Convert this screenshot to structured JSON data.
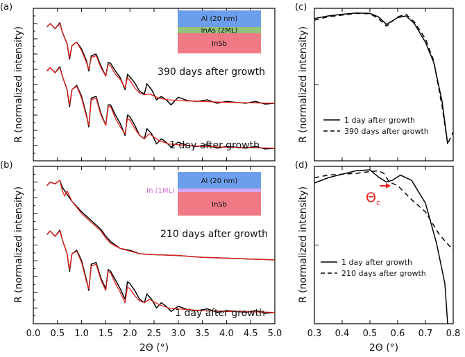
{
  "colors": {
    "measured": "#000000",
    "fit": "#e8201a",
    "al_layer": "#6d9eeb",
    "inas_layer": "#92c47c",
    "insb_layer": "#f07a84",
    "in_layer": "#d5a6f5",
    "in_label": "#d36bd3",
    "theta_c": "#e8201a"
  },
  "chart_data": [
    {
      "panel": "(a)",
      "type": "line",
      "xlabel": "",
      "ylabel": "R (normalized intensity)",
      "xlim": [
        0.0,
        5.0
      ],
      "scale": "log (arbitrary, curves offset)",
      "annotations": [
        "390 days after growth",
        "1 day after growth"
      ],
      "inset": {
        "layers": [
          "Al (20 nm)",
          "InAs (2ML)",
          "InSb"
        ]
      },
      "series": [
        {
          "name": "390 days after growth",
          "role": "measured",
          "color": "#000000",
          "x": [
            0.28,
            0.35,
            0.45,
            0.55,
            0.6,
            0.7,
            0.75,
            0.8,
            0.9,
            1.0,
            1.1,
            1.15,
            1.2,
            1.3,
            1.4,
            1.5,
            1.55,
            1.6,
            1.7,
            1.8,
            1.9,
            1.95,
            2.0,
            2.1,
            2.2,
            2.3,
            2.35,
            2.45,
            2.55,
            2.65,
            2.75,
            2.85,
            3.0,
            3.2,
            3.4,
            3.6,
            3.8,
            4.0,
            4.2,
            4.4,
            4.6,
            4.8,
            5.0
          ],
          "y": [
            8.9,
            9.1,
            8.8,
            9.15,
            8.6,
            7.9,
            7.0,
            7.8,
            8.0,
            7.6,
            6.9,
            6.3,
            7.2,
            7.3,
            6.6,
            6.0,
            6.8,
            6.75,
            6.3,
            5.9,
            5.2,
            6.1,
            5.95,
            5.6,
            5.1,
            4.95,
            5.55,
            5.2,
            4.6,
            4.8,
            4.6,
            4.3,
            4.75,
            4.55,
            4.5,
            4.6,
            4.4,
            4.5,
            4.45,
            4.4,
            4.5,
            4.35,
            4.4
          ]
        },
        {
          "name": "390 days after growth fit",
          "role": "fit",
          "color": "#e8201a",
          "x": [
            0.28,
            0.35,
            0.45,
            0.55,
            0.6,
            0.7,
            0.75,
            0.8,
            0.9,
            1.0,
            1.1,
            1.15,
            1.2,
            1.3,
            1.4,
            1.5,
            1.55,
            1.6,
            1.7,
            1.8,
            1.9,
            1.95,
            2.0,
            2.1,
            2.2,
            2.3,
            2.4,
            2.6,
            2.8,
            3.0,
            3.5,
            4.0,
            4.5,
            5.0
          ],
          "y": [
            8.9,
            9.1,
            8.8,
            9.1,
            8.6,
            7.9,
            7.1,
            7.8,
            8.0,
            7.5,
            6.8,
            6.4,
            7.1,
            7.2,
            6.5,
            6.0,
            6.7,
            6.6,
            6.1,
            5.8,
            5.3,
            5.9,
            5.75,
            5.3,
            5.0,
            4.9,
            4.95,
            4.7,
            4.6,
            4.55,
            4.5,
            4.45,
            4.42,
            4.4
          ]
        },
        {
          "name": "1 day after growth",
          "role": "measured",
          "color": "#000000",
          "x": [
            0.28,
            0.35,
            0.45,
            0.55,
            0.6,
            0.7,
            0.75,
            0.8,
            0.9,
            1.0,
            1.1,
            1.15,
            1.2,
            1.3,
            1.4,
            1.5,
            1.55,
            1.6,
            1.7,
            1.8,
            1.9,
            1.95,
            2.0,
            2.1,
            2.2,
            2.3,
            2.35,
            2.45,
            2.55,
            2.65,
            2.75,
            2.85,
            3.0,
            3.2,
            3.4,
            3.6,
            3.8,
            4.0,
            4.2,
            4.4,
            4.6,
            4.8,
            5.0
          ],
          "y": [
            6.3,
            6.5,
            6.2,
            6.55,
            6.0,
            5.2,
            4.2,
            5.2,
            5.45,
            4.8,
            3.7,
            3.0,
            4.7,
            4.8,
            3.8,
            3.1,
            4.3,
            4.3,
            3.7,
            3.2,
            2.5,
            3.7,
            3.6,
            3.1,
            2.5,
            2.3,
            2.9,
            2.6,
            2.0,
            2.3,
            2.1,
            1.8,
            2.1,
            1.9,
            1.85,
            1.95,
            1.75,
            1.85,
            1.8,
            1.75,
            1.85,
            1.7,
            1.75
          ]
        },
        {
          "name": "1 day after growth fit",
          "role": "fit",
          "color": "#e8201a",
          "x": [
            0.28,
            0.35,
            0.45,
            0.55,
            0.6,
            0.7,
            0.75,
            0.8,
            0.9,
            1.0,
            1.1,
            1.15,
            1.2,
            1.3,
            1.4,
            1.5,
            1.55,
            1.6,
            1.7,
            1.8,
            1.9,
            1.95,
            2.0,
            2.1,
            2.2,
            2.3,
            2.4,
            2.6,
            2.8,
            3.0,
            3.5,
            4.0,
            4.5,
            5.0
          ],
          "y": [
            6.3,
            6.5,
            6.2,
            6.5,
            6.0,
            5.2,
            4.3,
            5.2,
            5.4,
            4.7,
            3.6,
            3.1,
            4.6,
            4.7,
            3.7,
            3.1,
            4.2,
            4.2,
            3.5,
            3.0,
            2.6,
            3.5,
            3.4,
            2.9,
            2.5,
            2.3,
            2.6,
            2.2,
            2.0,
            1.95,
            1.85,
            1.8,
            1.78,
            1.75
          ]
        }
      ]
    },
    {
      "panel": "(b)",
      "type": "line",
      "xlabel": "2Θ (°)",
      "ylabel": "R (normalized intensity)",
      "xlim": [
        0.0,
        5.0
      ],
      "xticks": [
        "0.0",
        "0.5",
        "1.0",
        "1.5",
        "2.0",
        "2.5",
        "3.0",
        "3.5",
        "4.0",
        "4.5",
        "5.0"
      ],
      "scale": "log (arbitrary, curves offset)",
      "annotations": [
        "210 days after growth",
        "1 day after growth"
      ],
      "inset": {
        "layers": [
          "Al (20 nm)",
          "In (1ML)",
          "InSb"
        ]
      },
      "series": [
        {
          "name": "210 days after growth",
          "role": "measured",
          "color": "#000000",
          "x": [
            0.28,
            0.35,
            0.45,
            0.55,
            0.6,
            0.7,
            0.8,
            1.0,
            1.2,
            1.4,
            1.5,
            1.6,
            1.8,
            2.0,
            2.2,
            2.5,
            3.0,
            3.5,
            4.0,
            4.5,
            5.0
          ],
          "y": [
            8.9,
            9.1,
            9.0,
            9.2,
            8.8,
            8.4,
            8.0,
            7.4,
            6.9,
            6.4,
            6.0,
            5.7,
            5.3,
            5.2,
            5.0,
            4.95,
            4.9,
            4.8,
            4.75,
            4.7,
            4.65
          ]
        },
        {
          "name": "210 days after growth fit",
          "role": "fit",
          "color": "#e8201a",
          "x": [
            0.28,
            0.35,
            0.45,
            0.55,
            0.6,
            0.65,
            0.7,
            0.8,
            1.0,
            1.2,
            1.4,
            1.5,
            1.6,
            1.8,
            2.0,
            2.2,
            2.5,
            3.0,
            3.5,
            4.0,
            4.5,
            5.0
          ],
          "y": [
            8.9,
            9.1,
            9.0,
            9.2,
            8.6,
            8.3,
            8.6,
            8.0,
            7.3,
            6.8,
            6.3,
            5.9,
            5.6,
            5.3,
            5.15,
            5.0,
            4.95,
            4.9,
            4.8,
            4.75,
            4.7,
            4.65
          ]
        },
        {
          "name": "1 day after growth",
          "role": "measured",
          "color": "#000000",
          "x": [
            0.28,
            0.35,
            0.45,
            0.55,
            0.6,
            0.7,
            0.75,
            0.8,
            0.9,
            1.0,
            1.1,
            1.15,
            1.2,
            1.3,
            1.4,
            1.5,
            1.55,
            1.6,
            1.7,
            1.8,
            1.9,
            1.95,
            2.0,
            2.1,
            2.2,
            2.3,
            2.35,
            2.45,
            2.55,
            2.65,
            2.75,
            2.85,
            3.0,
            3.2,
            3.4,
            3.6,
            3.8,
            4.0,
            4.2,
            4.4,
            4.6,
            4.8,
            5.0
          ],
          "y": [
            6.1,
            6.3,
            6.0,
            6.35,
            5.8,
            5.0,
            4.0,
            5.0,
            5.2,
            4.6,
            3.5,
            2.9,
            4.4,
            4.5,
            3.6,
            3.0,
            4.1,
            4.0,
            3.5,
            3.0,
            2.4,
            3.4,
            3.3,
            2.9,
            2.4,
            2.2,
            2.7,
            2.4,
            1.9,
            2.2,
            2.0,
            1.7,
            2.0,
            1.8,
            1.75,
            1.85,
            1.65,
            1.75,
            1.7,
            1.65,
            1.75,
            1.6,
            1.65
          ]
        },
        {
          "name": "1 day after growth fit",
          "role": "fit",
          "color": "#e8201a",
          "x": [
            0.28,
            0.35,
            0.45,
            0.55,
            0.6,
            0.7,
            0.75,
            0.8,
            0.9,
            1.0,
            1.1,
            1.15,
            1.2,
            1.3,
            1.4,
            1.5,
            1.55,
            1.6,
            1.7,
            1.8,
            1.9,
            1.95,
            2.0,
            2.1,
            2.2,
            2.3,
            2.4,
            2.6,
            2.8,
            3.0,
            3.5,
            4.0,
            4.5,
            5.0
          ],
          "y": [
            6.1,
            6.3,
            6.0,
            6.3,
            5.8,
            5.0,
            4.1,
            5.0,
            5.15,
            4.5,
            3.4,
            3.0,
            4.3,
            4.4,
            3.5,
            2.9,
            4.0,
            3.9,
            3.3,
            2.8,
            2.2,
            3.1,
            3.0,
            2.6,
            2.3,
            2.2,
            2.4,
            2.1,
            1.9,
            1.85,
            1.75,
            1.7,
            1.68,
            1.65
          ]
        }
      ]
    },
    {
      "panel": "(c)",
      "type": "line",
      "xlabel": "",
      "ylabel": "R (normalized intensity)",
      "xlim": [
        0.3,
        0.8
      ],
      "legend": [
        "1 day after growth",
        "390 days after growth"
      ],
      "legend_position": "bottom-left",
      "series": [
        {
          "name": "1 day after growth",
          "style": "solid",
          "x": [
            0.3,
            0.35,
            0.4,
            0.45,
            0.5,
            0.53,
            0.56,
            0.6,
            0.63,
            0.66,
            0.7,
            0.73,
            0.76,
            0.78
          ],
          "y": [
            9.4,
            9.55,
            9.65,
            9.72,
            9.7,
            9.5,
            9.05,
            9.45,
            9.55,
            9.1,
            8.0,
            6.8,
            4.5,
            2.0
          ]
        },
        {
          "name": "390 days after growth",
          "style": "dashed",
          "x": [
            0.3,
            0.35,
            0.4,
            0.45,
            0.5,
            0.53,
            0.56,
            0.6,
            0.63,
            0.66,
            0.7,
            0.73,
            0.76,
            0.78,
            0.8
          ],
          "y": [
            9.3,
            9.5,
            9.6,
            9.7,
            9.68,
            9.4,
            8.95,
            9.5,
            9.65,
            9.2,
            8.2,
            6.9,
            4.2,
            2.0,
            2.7
          ]
        }
      ]
    },
    {
      "panel": "(d)",
      "type": "line",
      "xlabel": "2Θ (°)",
      "ylabel": "R (normalized intensity)",
      "xlim": [
        0.3,
        0.8
      ],
      "xticks": [
        "0.3",
        "0.4",
        "0.5",
        "0.6",
        "0.7",
        "0.8"
      ],
      "legend": [
        "1 day after growth",
        "210 days after growth"
      ],
      "legend_position": "bottom-left",
      "annotations": [
        "Θ",
        "c"
      ],
      "series": [
        {
          "name": "1 day after growth",
          "style": "solid",
          "x": [
            0.3,
            0.35,
            0.4,
            0.45,
            0.5,
            0.53,
            0.56,
            0.58,
            0.61,
            0.65,
            0.7,
            0.74,
            0.77,
            0.78
          ],
          "y": [
            9.05,
            9.35,
            9.55,
            9.75,
            9.8,
            9.4,
            9.1,
            9.2,
            9.5,
            9.2,
            7.9,
            5.6,
            3.3,
            1.0
          ]
        },
        {
          "name": "210 days after growth",
          "style": "dashed",
          "x": [
            0.3,
            0.35,
            0.4,
            0.45,
            0.5,
            0.53,
            0.55,
            0.57,
            0.6,
            0.65,
            0.7,
            0.75,
            0.8
          ],
          "y": [
            9.35,
            9.5,
            9.55,
            9.6,
            9.7,
            9.75,
            9.6,
            9.1,
            8.9,
            8.1,
            7.4,
            6.1,
            5.2
          ]
        }
      ]
    }
  ]
}
